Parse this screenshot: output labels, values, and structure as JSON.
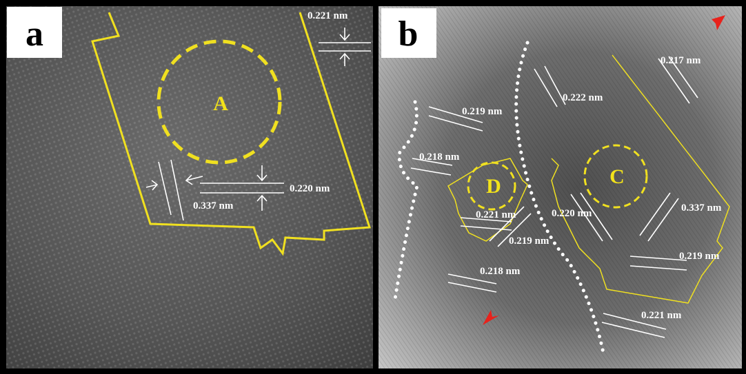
{
  "panels": [
    {
      "label": "a",
      "regions": [
        "A"
      ],
      "spacings": [
        "0.221 nm",
        "0.220 nm",
        "0.337 nm"
      ]
    },
    {
      "label": "b",
      "regions": [
        "D",
        "C"
      ],
      "spacings": [
        "0.217 nm",
        "0.222 nm",
        "0.219 nm",
        "0.218 nm",
        "0.221 nm",
        "0.219 nm",
        "0.220 nm",
        "0.337 nm",
        "0.219 nm",
        "0.218 nm",
        "0.221 nm"
      ]
    }
  ]
}
